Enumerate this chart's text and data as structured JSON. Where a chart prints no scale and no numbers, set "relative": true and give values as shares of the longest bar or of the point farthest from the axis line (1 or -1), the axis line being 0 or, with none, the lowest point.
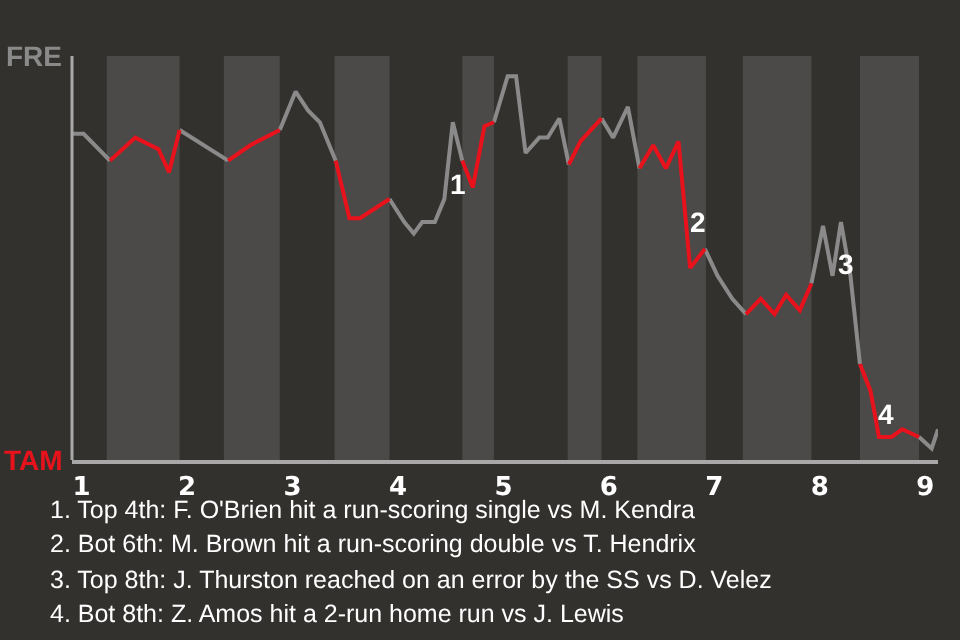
{
  "chart_data": {
    "type": "line",
    "relative": true,
    "series": [
      {
        "color": "#8a8a8a",
        "x": [
          0.91,
          1.02,
          1.27,
          1.6,
          1.93,
          2.39,
          2.64,
          2.88,
          3.03,
          3.15,
          3.26,
          3.41,
          3.66,
          3.92,
          4.06,
          4.15,
          4.23,
          4.35,
          4.44,
          4.52,
          4.61,
          4.76,
          4.91,
          5.04,
          5.12,
          5.21,
          5.34,
          5.42,
          5.53,
          5.62,
          5.78,
          5.93,
          6.04,
          6.18,
          6.29,
          6.6,
          6.91,
          7.03,
          7.17,
          7.3,
          7.61,
          7.92,
          8.03,
          8.12,
          8.2,
          8.29,
          8.38,
          8.66,
          8.94,
          9.06,
          9.12
        ],
        "values": [
          0.85,
          0.85,
          0.78,
          null,
          0.86,
          0.78,
          null,
          0.86,
          0.96,
          0.91,
          0.88,
          0.78,
          null,
          0.68,
          0.62,
          0.59,
          0.62,
          0.62,
          0.68,
          0.88,
          0.78,
          null,
          0.88,
          1,
          1,
          0.8,
          0.84,
          0.84,
          0.89,
          0.77,
          null,
          0.89,
          0.84,
          0.92,
          0.76,
          null,
          0.55,
          0.48,
          0.42,
          0.38,
          null,
          0.46,
          0.61,
          0.48,
          0.62,
          0.48,
          0.25,
          null,
          0.06,
          0.03,
          0.08
        ]
      },
      {
        "color": "#e8121c",
        "x": [
          1.27,
          1.51,
          1.73,
          1.83,
          1.93,
          2.16,
          2.39,
          2.6,
          2.88,
          3.15,
          3.41,
          3.54,
          3.64,
          3.92,
          4.26,
          4.61,
          4.71,
          4.82,
          4.91,
          5.26,
          5.62,
          5.73,
          5.93,
          6.11,
          6.29,
          6.42,
          6.54,
          6.66,
          6.77,
          6.91,
          7.1,
          7.3,
          7.44,
          7.57,
          7.68,
          7.81,
          7.92,
          8.15,
          8.38,
          8.48,
          8.56,
          8.68,
          8.78,
          8.94
        ],
        "values": [
          0.78,
          0.84,
          0.81,
          0.75,
          0.86,
          null,
          0.78,
          0.82,
          0.86,
          null,
          0.78,
          0.63,
          0.63,
          0.68,
          null,
          0.78,
          0.71,
          0.87,
          0.88,
          null,
          0.77,
          0.83,
          0.89,
          null,
          0.76,
          0.82,
          0.76,
          0.83,
          0.5,
          0.55,
          null,
          0.38,
          0.42,
          0.38,
          0.43,
          0.39,
          0.46,
          null,
          0.25,
          0.18,
          0.06,
          0.06,
          0.08,
          0.06
        ]
      }
    ],
    "xlim": [
      0.91,
      9.12
    ],
    "xticks": [
      1,
      2,
      3,
      4,
      5,
      6,
      7,
      8,
      9
    ],
    "grid": false,
    "marker": "none",
    "line_style": "solid",
    "bands": [
      {
        "axis": "x",
        "from": 1.24,
        "to": 1.93,
        "color": "#4b4a48"
      },
      {
        "axis": "x",
        "from": 2.35,
        "to": 2.88,
        "color": "#4b4a48"
      },
      {
        "axis": "x",
        "from": 3.4,
        "to": 3.92,
        "color": "#4b4a48"
      },
      {
        "axis": "x",
        "from": 4.61,
        "to": 4.91,
        "color": "#4b4a48"
      },
      {
        "axis": "x",
        "from": 5.61,
        "to": 5.93,
        "color": "#4b4a48"
      },
      {
        "axis": "x",
        "from": 6.27,
        "to": 6.92,
        "color": "#4b4a48"
      },
      {
        "axis": "x",
        "from": 7.27,
        "to": 7.92,
        "color": "#4b4a48"
      },
      {
        "axis": "x",
        "from": 8.38,
        "to": 8.94,
        "color": "#4b4a48"
      }
    ],
    "annotations": [
      "FRE",
      "TAM",
      {
        "text": "1",
        "x": 4.56,
        "y": 0.72
      },
      {
        "text": "2",
        "x": 6.85,
        "y": 0.62
      },
      {
        "text": "3",
        "x": 8.25,
        "y": 0.51
      },
      {
        "text": "4",
        "x": 8.63,
        "y": 0.12
      },
      "1. Top 4th: F. O'Brien hit a run-scoring single vs M. Kendra",
      "2. Bot 6th: M. Brown hit a run-scoring double vs T. Hendrix",
      "3. Top 8th: J. Thurston reached on an error by the SS vs D. Velez",
      "4. Bot 8th: Z. Amos hit a 2-run home run vs J. Lewis"
    ]
  }
}
